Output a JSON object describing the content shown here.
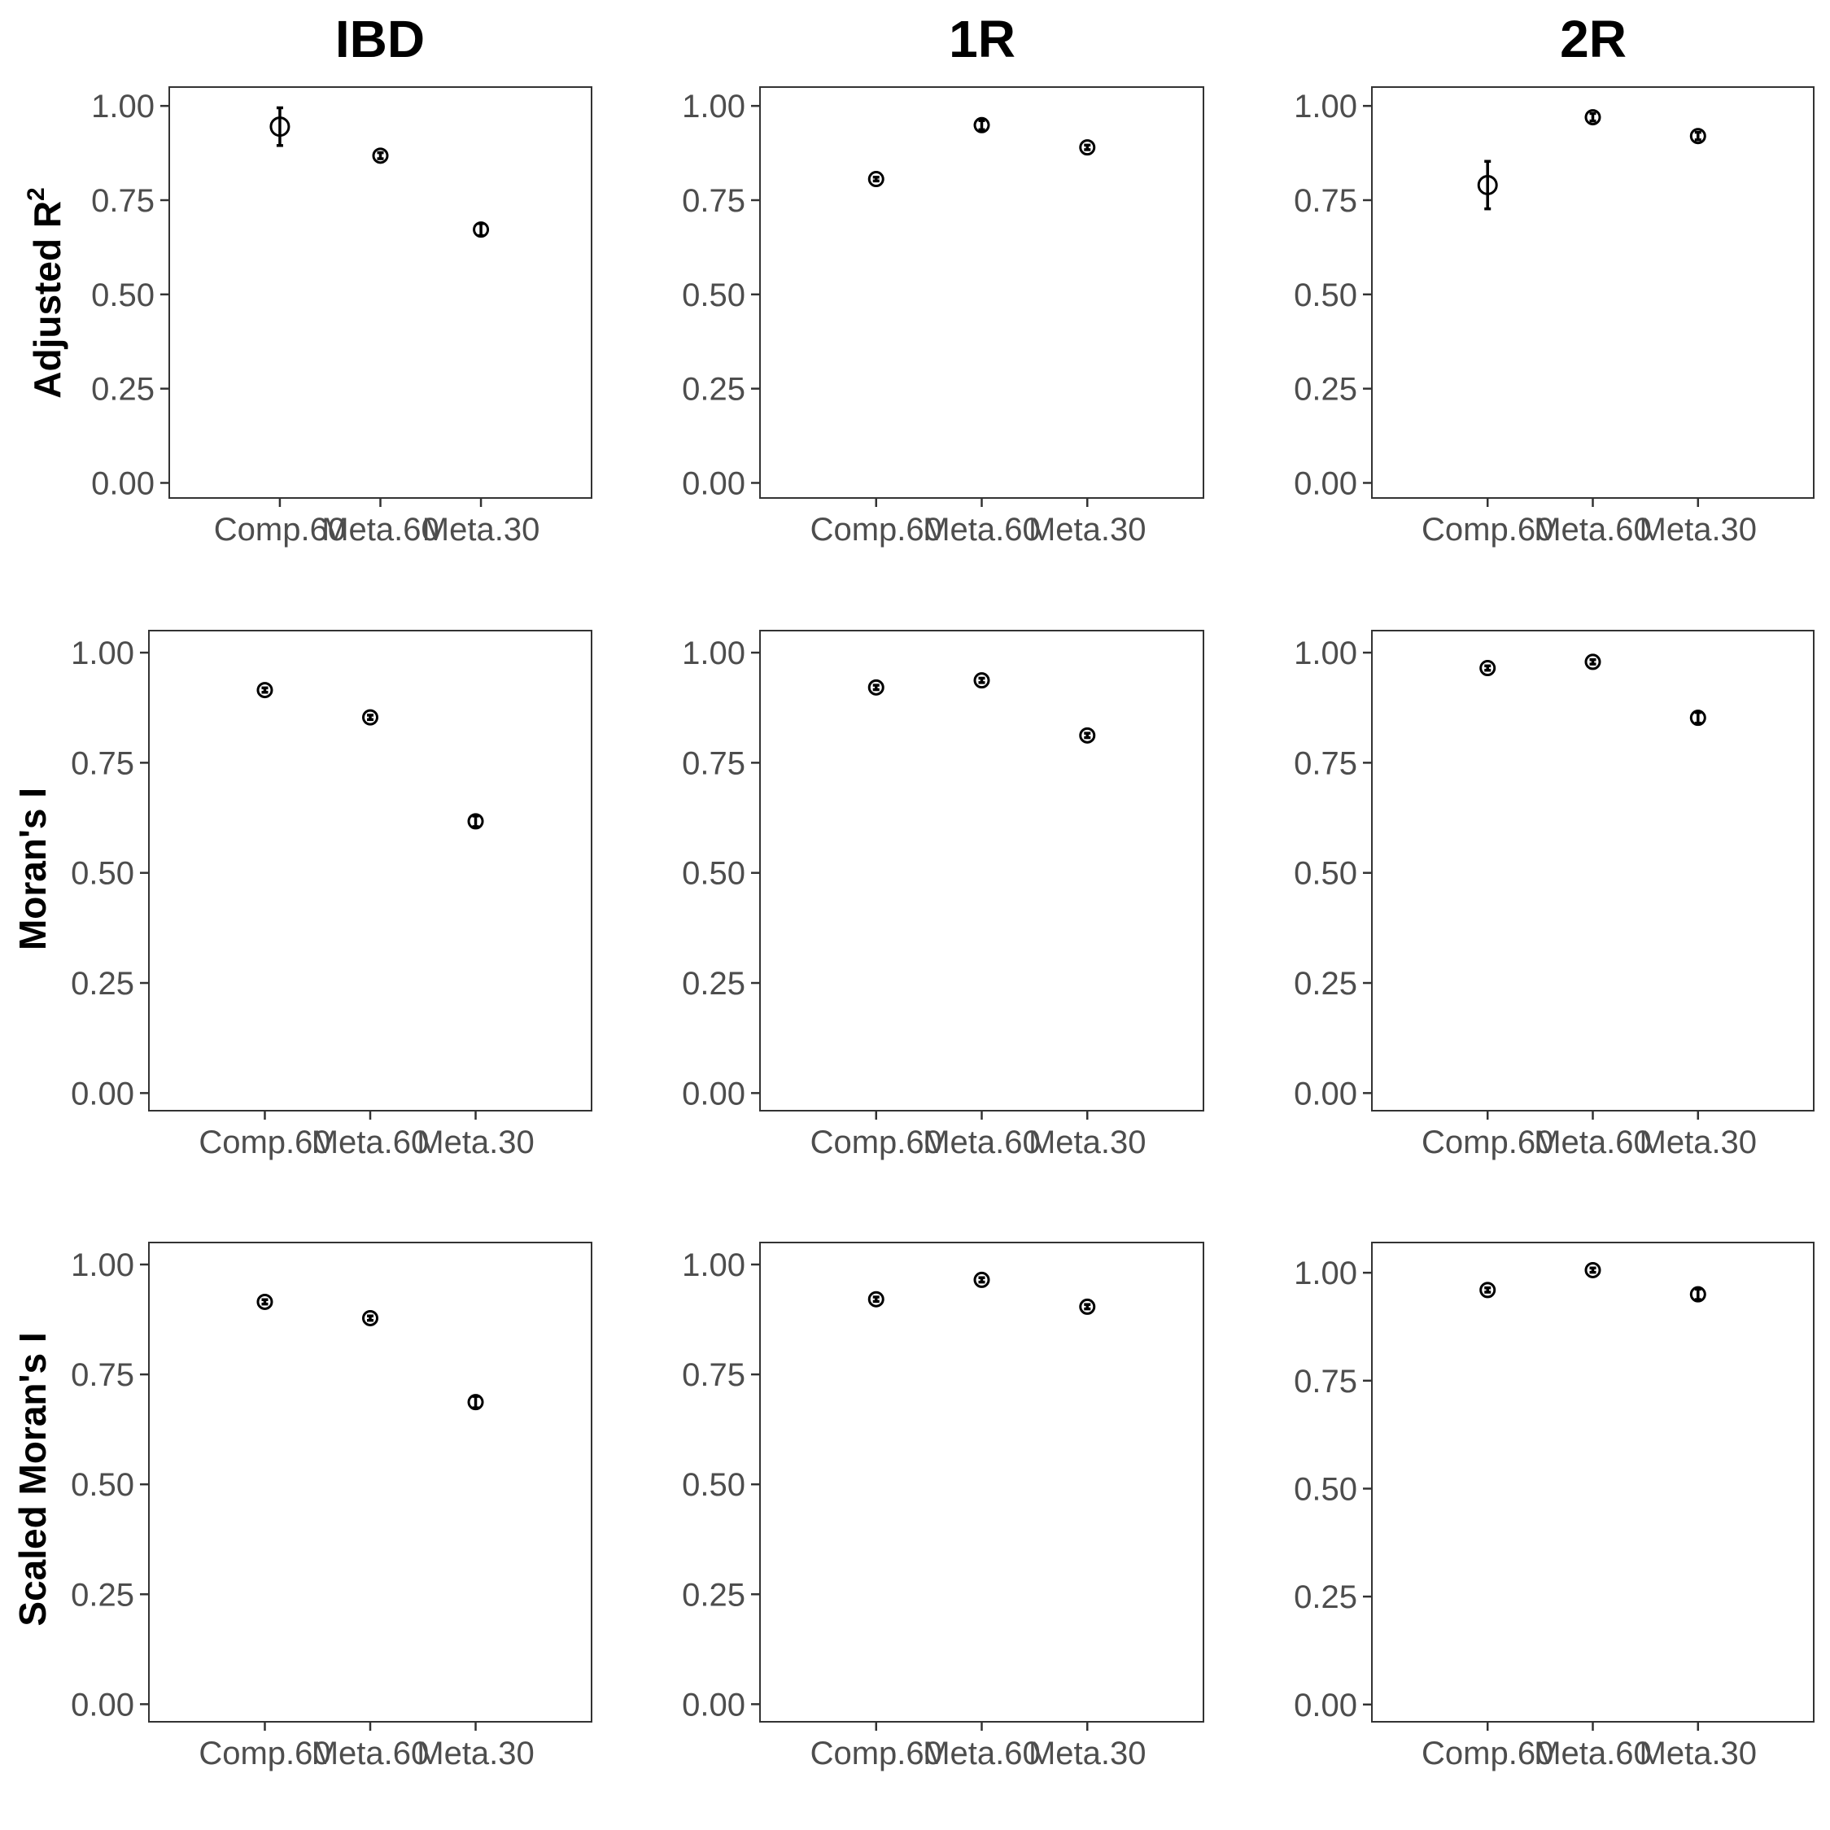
{
  "figure": {
    "column_titles": [
      "IBD",
      "1R",
      "2R"
    ],
    "row_labels": [
      "Adjusted R",
      "Moran's I",
      "Scaled Moran's I"
    ],
    "row_label_superscripts": [
      "2",
      "",
      ""
    ]
  },
  "chart_data": [
    {
      "type": "scatter",
      "row": 0,
      "col": 0,
      "categories": [
        "Comp.60",
        "Meta.60",
        "Meta.30"
      ],
      "values": [
        0.945,
        0.868,
        0.672
      ],
      "errors": [
        0.05,
        0.008,
        0.016
      ],
      "ylim": [
        -0.04,
        1.05
      ],
      "yticks": [
        "0.00",
        "0.25",
        "0.50",
        "0.75",
        "1.00"
      ],
      "ytick_values": [
        0,
        0.25,
        0.5,
        0.75,
        1.0
      ],
      "xlabel": "",
      "ylabel": ""
    },
    {
      "type": "scatter",
      "row": 0,
      "col": 1,
      "categories": [
        "Comp.60",
        "Meta.60",
        "Meta.30"
      ],
      "values": [
        0.806,
        0.949,
        0.89
      ],
      "errors": [
        0.005,
        0.012,
        0.006
      ],
      "ylim": [
        -0.04,
        1.05
      ],
      "yticks": [
        "0.00",
        "0.25",
        "0.50",
        "0.75",
        "1.00"
      ],
      "ytick_values": [
        0,
        0.25,
        0.5,
        0.75,
        1.0
      ],
      "xlabel": "",
      "ylabel": ""
    },
    {
      "type": "scatter",
      "row": 0,
      "col": 2,
      "categories": [
        "Comp.60",
        "Meta.60",
        "Meta.30"
      ],
      "values": [
        0.79,
        0.97,
        0.92
      ],
      "errors": [
        0.063,
        0.01,
        0.01
      ],
      "ylim": [
        -0.04,
        1.05
      ],
      "yticks": [
        "0.00",
        "0.25",
        "0.50",
        "0.75",
        "1.00"
      ],
      "ytick_values": [
        0,
        0.25,
        0.5,
        0.75,
        1.0
      ],
      "xlabel": "",
      "ylabel": ""
    },
    {
      "type": "scatter",
      "row": 1,
      "col": 0,
      "categories": [
        "Comp.60",
        "Meta.60",
        "Meta.30"
      ],
      "values": [
        0.915,
        0.853,
        0.617
      ],
      "errors": [
        0.005,
        0.005,
        0.012
      ],
      "ylim": [
        -0.04,
        1.05
      ],
      "yticks": [
        "0.00",
        "0.25",
        "0.50",
        "0.75",
        "1.00"
      ],
      "ytick_values": [
        0,
        0.25,
        0.5,
        0.75,
        1.0
      ],
      "xlabel": "",
      "ylabel": ""
    },
    {
      "type": "scatter",
      "row": 1,
      "col": 1,
      "categories": [
        "Comp.60",
        "Meta.60",
        "Meta.30"
      ],
      "values": [
        0.921,
        0.937,
        0.812
      ],
      "errors": [
        0.005,
        0.005,
        0.005
      ],
      "ylim": [
        -0.04,
        1.05
      ],
      "yticks": [
        "0.00",
        "0.25",
        "0.50",
        "0.75",
        "1.00"
      ],
      "ytick_values": [
        0,
        0.25,
        0.5,
        0.75,
        1.0
      ],
      "xlabel": "",
      "ylabel": ""
    },
    {
      "type": "scatter",
      "row": 1,
      "col": 2,
      "categories": [
        "Comp.60",
        "Meta.60",
        "Meta.30"
      ],
      "values": [
        0.965,
        0.979,
        0.852
      ],
      "errors": [
        0.005,
        0.005,
        0.012
      ],
      "ylim": [
        -0.04,
        1.05
      ],
      "yticks": [
        "0.00",
        "0.25",
        "0.50",
        "0.75",
        "1.00"
      ],
      "ytick_values": [
        0,
        0.25,
        0.5,
        0.75,
        1.0
      ],
      "xlabel": "",
      "ylabel": ""
    },
    {
      "type": "scatter",
      "row": 2,
      "col": 0,
      "categories": [
        "Comp.60",
        "Meta.60",
        "Meta.30"
      ],
      "values": [
        0.915,
        0.878,
        0.687
      ],
      "errors": [
        0.005,
        0.005,
        0.013
      ],
      "ylim": [
        -0.04,
        1.05
      ],
      "yticks": [
        "0.00",
        "0.25",
        "0.50",
        "0.75",
        "1.00"
      ],
      "ytick_values": [
        0,
        0.25,
        0.5,
        0.75,
        1.0
      ],
      "xlabel": "",
      "ylabel": ""
    },
    {
      "type": "scatter",
      "row": 2,
      "col": 1,
      "categories": [
        "Comp.60",
        "Meta.60",
        "Meta.30"
      ],
      "values": [
        0.921,
        0.965,
        0.904
      ],
      "errors": [
        0.005,
        0.005,
        0.005
      ],
      "ylim": [
        -0.04,
        1.05
      ],
      "yticks": [
        "0.00",
        "0.25",
        "0.50",
        "0.75",
        "1.00"
      ],
      "ytick_values": [
        0,
        0.25,
        0.5,
        0.75,
        1.0
      ],
      "xlabel": "",
      "ylabel": ""
    },
    {
      "type": "scatter",
      "row": 2,
      "col": 2,
      "categories": [
        "Comp.60",
        "Meta.60",
        "Meta.30"
      ],
      "values": [
        0.96,
        1.006,
        0.95
      ],
      "errors": [
        0.005,
        0.005,
        0.012
      ],
      "ylim": [
        -0.04,
        1.07
      ],
      "yticks": [
        "0.00",
        "0.25",
        "0.50",
        "0.75",
        "1.00"
      ],
      "ytick_values": [
        0,
        0.25,
        0.5,
        0.75,
        1.0
      ],
      "xlabel": "",
      "ylabel": ""
    }
  ]
}
